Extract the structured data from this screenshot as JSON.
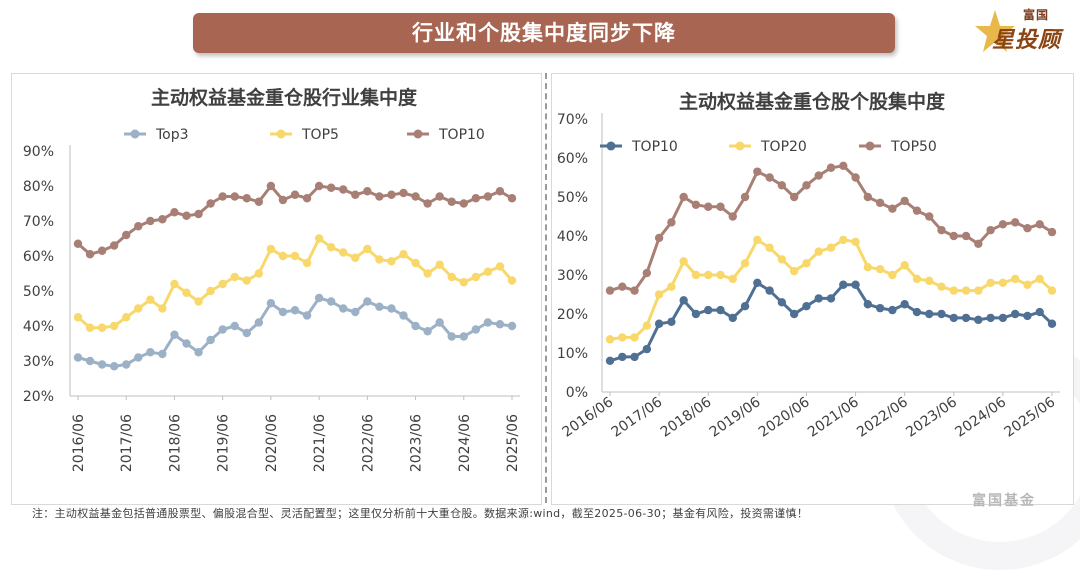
{
  "banner": {
    "title": "行业和个股集中度同步下降"
  },
  "logo": {
    "sub": "富国",
    "main": "星投顾"
  },
  "watermark": "富国基金",
  "footnote": "注：主动权益基金包括普通股票型、偏股混合型、灵活配置型；这里仅分析前十大重仓股。数据来源:wind，截至2025-06-30；基金有风险，投资需谨慎！",
  "chart_data": [
    {
      "type": "line",
      "title": "主动权益基金重仓股行业集中度",
      "x_ticks": [
        "2016/06",
        "2017/06",
        "2018/06",
        "2019/06",
        "2020/06",
        "2021/06",
        "2022/06",
        "2023/06",
        "2024/06",
        "2025/06"
      ],
      "x": [
        "2016/06",
        "2016/09",
        "2016/12",
        "2017/03",
        "2017/06",
        "2017/09",
        "2017/12",
        "2018/03",
        "2018/06",
        "2018/09",
        "2018/12",
        "2019/03",
        "2019/06",
        "2019/09",
        "2019/12",
        "2020/03",
        "2020/06",
        "2020/09",
        "2020/12",
        "2021/03",
        "2021/06",
        "2021/09",
        "2021/12",
        "2022/03",
        "2022/06",
        "2022/09",
        "2022/12",
        "2023/03",
        "2023/06",
        "2023/09",
        "2023/12",
        "2024/03",
        "2024/06",
        "2024/09",
        "2024/12",
        "2025/03",
        "2025/06"
      ],
      "ylim": [
        20,
        90
      ],
      "y_ticks": [
        "20%",
        "30%",
        "40%",
        "50%",
        "60%",
        "70%",
        "80%",
        "90%"
      ],
      "y_tick_values": [
        20,
        30,
        40,
        50,
        60,
        70,
        80,
        90
      ],
      "series": [
        {
          "name": "Top3",
          "color": "#9cb1c6",
          "values": [
            31,
            30,
            29,
            28.5,
            29,
            31,
            32.5,
            32,
            37.5,
            35,
            32.5,
            36,
            39,
            40,
            38,
            41,
            46.5,
            44,
            44.5,
            43,
            48,
            47,
            45,
            44,
            47,
            45.5,
            45,
            43,
            40,
            38.5,
            41,
            37,
            37,
            39,
            41,
            40.5,
            40
          ]
        },
        {
          "name": "TOP5",
          "color": "#f8d86a",
          "values": [
            42.5,
            39.5,
            39.5,
            40,
            42.5,
            45,
            47.5,
            45,
            52,
            49.5,
            47,
            50,
            52,
            54,
            53,
            55,
            62,
            60,
            60,
            58,
            65,
            62.5,
            61,
            59.5,
            62,
            59,
            58.5,
            60.5,
            58,
            55,
            57.5,
            54,
            52.5,
            54,
            55.5,
            57,
            53
          ]
        },
        {
          "name": "TOP10",
          "color": "#a87f75",
          "values": [
            63.5,
            60.5,
            61.5,
            63,
            66,
            68.5,
            70,
            70.5,
            72.5,
            71.5,
            72,
            75,
            77,
            77,
            76.5,
            75.5,
            80,
            76,
            77.5,
            76.5,
            80,
            79.5,
            79,
            77.5,
            78.5,
            77,
            77.5,
            78,
            77,
            75,
            77,
            75.5,
            75,
            76.5,
            77,
            78.5,
            76.5
          ]
        }
      ]
    },
    {
      "type": "line",
      "title": "主动权益基金重仓股个股集中度",
      "x_ticks": [
        "2016/06",
        "2017/06",
        "2018/06",
        "2019/06",
        "2020/06",
        "2021/06",
        "2022/06",
        "2023/06",
        "2024/06",
        "2025/06"
      ],
      "x": [
        "2016/06",
        "2016/09",
        "2016/12",
        "2017/03",
        "2017/06",
        "2017/09",
        "2017/12",
        "2018/03",
        "2018/06",
        "2018/09",
        "2018/12",
        "2019/03",
        "2019/06",
        "2019/09",
        "2019/12",
        "2020/03",
        "2020/06",
        "2020/09",
        "2020/12",
        "2021/03",
        "2021/06",
        "2021/09",
        "2021/12",
        "2022/03",
        "2022/06",
        "2022/09",
        "2022/12",
        "2023/03",
        "2023/06",
        "2023/09",
        "2023/12",
        "2024/03",
        "2024/06",
        "2024/09",
        "2024/12",
        "2025/03",
        "2025/06"
      ],
      "ylim": [
        0,
        70
      ],
      "y_ticks": [
        "0%",
        "10%",
        "20%",
        "30%",
        "40%",
        "50%",
        "60%",
        "70%"
      ],
      "y_tick_values": [
        0,
        10,
        20,
        30,
        40,
        50,
        60,
        70
      ],
      "series": [
        {
          "name": "TOP10",
          "color": "#4f6f93",
          "values": [
            8,
            9,
            9,
            11,
            17.5,
            18,
            23.5,
            20,
            21,
            21,
            19,
            22,
            28,
            26,
            23,
            20,
            22,
            24,
            24,
            27.5,
            27.5,
            22.5,
            21.5,
            21,
            22.5,
            20.5,
            20,
            20,
            19,
            19,
            18.5,
            19,
            19,
            20,
            19.5,
            20.5,
            17.5
          ]
        },
        {
          "name": "TOP20",
          "color": "#f8d86a",
          "values": [
            13.5,
            14,
            14,
            17,
            25,
            27,
            33.5,
            30,
            30,
            30,
            29,
            33,
            39,
            37,
            34,
            31,
            33,
            36,
            37,
            39,
            38.5,
            32,
            31.5,
            30,
            32.5,
            29,
            28.5,
            27,
            26,
            26,
            26,
            28,
            28,
            29,
            27.5,
            29,
            26
          ]
        },
        {
          "name": "TOP50",
          "color": "#a87f75",
          "values": [
            26,
            27,
            26,
            30.5,
            39.5,
            43.5,
            50,
            48,
            47.5,
            47.5,
            45,
            50,
            56.5,
            55,
            53,
            50,
            53,
            55.5,
            57.5,
            58,
            55,
            50,
            48.5,
            47,
            49,
            46.5,
            45,
            41.5,
            40,
            40,
            38,
            41.5,
            43,
            43.5,
            42,
            43,
            41
          ]
        }
      ]
    }
  ]
}
